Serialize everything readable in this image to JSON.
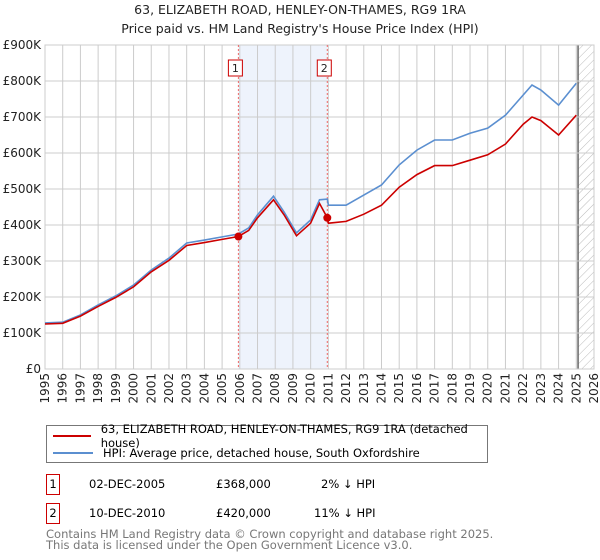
{
  "chart_data": {
    "type": "line",
    "title": "63, ELIZABETH ROAD, HENLEY-ON-THAMES, RG9 1RA",
    "subtitle": "Price paid vs. HM Land Registry's House Price Index (HPI)",
    "xlim": [
      1995,
      2026
    ],
    "ylim": [
      0,
      900000
    ],
    "x_ticks": [
      "1995",
      "1996",
      "1997",
      "1998",
      "1999",
      "2000",
      "2001",
      "2002",
      "2003",
      "2004",
      "2005",
      "2006",
      "2007",
      "2008",
      "2009",
      "2010",
      "2011",
      "2012",
      "2013",
      "2014",
      "2015",
      "2016",
      "2017",
      "2018",
      "2019",
      "2020",
      "2021",
      "2022",
      "2023",
      "2024",
      "2025",
      "2026"
    ],
    "y_ticks": [
      {
        "v": 0,
        "label": "£0"
      },
      {
        "v": 100000,
        "label": "£100K"
      },
      {
        "v": 200000,
        "label": "£200K"
      },
      {
        "v": 300000,
        "label": "£300K"
      },
      {
        "v": 400000,
        "label": "£400K"
      },
      {
        "v": 500000,
        "label": "£500K"
      },
      {
        "v": 600000,
        "label": "£600K"
      },
      {
        "v": 700000,
        "label": "£700K"
      },
      {
        "v": 800000,
        "label": "£800K"
      },
      {
        "v": 900000,
        "label": "£900K"
      }
    ],
    "grid": true,
    "shaded_period": [
      2005.92,
      2010.94
    ],
    "forecast_hatch_from": 2025.1,
    "series": [
      {
        "name": "63, ELIZABETH ROAD, HENLEY-ON-THAMES, RG9 1RA (detached house)",
        "color": "#cc0000",
        "x": [
          1995,
          1996,
          1997,
          1998,
          1999,
          2000,
          2001,
          2002,
          2003,
          2004,
          2005,
          2005.92,
          2006.5,
          2007,
          2007.9,
          2008.5,
          2009.2,
          2010,
          2010.5,
          2010.94,
          2011,
          2012,
          2013,
          2014,
          2015,
          2016,
          2017,
          2018,
          2019,
          2020,
          2021,
          2022,
          2022.5,
          2023,
          2024,
          2025
        ],
        "y": [
          125000,
          127000,
          147000,
          174000,
          199000,
          228000,
          270000,
          302000,
          343000,
          351000,
          360000,
          368000,
          385000,
          420000,
          470000,
          428000,
          370000,
          405000,
          460000,
          420000,
          405000,
          410000,
          430000,
          455000,
          505000,
          540000,
          565000,
          565000,
          580000,
          595000,
          625000,
          680000,
          700000,
          690000,
          650000,
          705000
        ]
      },
      {
        "name": "HPI: Average price, detached house, South Oxfordshire",
        "color": "#5b8fd0",
        "x": [
          1995,
          1996,
          1997,
          1998,
          1999,
          2000,
          2001,
          2002,
          2003,
          2004,
          2005,
          2005.92,
          2006.5,
          2007,
          2007.9,
          2008.5,
          2009.2,
          2010,
          2010.5,
          2010.94,
          2011,
          2012,
          2013,
          2014,
          2015,
          2016,
          2017,
          2018,
          2019,
          2020,
          2021,
          2022,
          2022.5,
          2023,
          2024,
          2025
        ],
        "y": [
          128000,
          130000,
          150000,
          178000,
          203000,
          233000,
          275000,
          308000,
          350000,
          358000,
          367000,
          375000,
          392000,
          428000,
          480000,
          436000,
          378000,
          414000,
          470000,
          472000,
          455000,
          455000,
          483000,
          511000,
          567000,
          608000,
          636000,
          636000,
          655000,
          669000,
          705000,
          761000,
          789000,
          775000,
          733000,
          794000
        ]
      }
    ],
    "sales": [
      {
        "n": "1",
        "x": 2005.92,
        "y": 368000
      },
      {
        "n": "2",
        "x": 2010.94,
        "y": 420000
      }
    ]
  },
  "legend": {
    "property": "63, ELIZABETH ROAD, HENLEY-ON-THAMES, RG9 1RA (detached house)",
    "hpi": "HPI: Average price, detached house, South Oxfordshire"
  },
  "transactions": [
    {
      "n": "1",
      "date": "02-DEC-2005",
      "price": "£368,000",
      "hpi": "2% ↓ HPI"
    },
    {
      "n": "2",
      "date": "10-DEC-2010",
      "price": "£420,000",
      "hpi": "11% ↓ HPI"
    }
  ],
  "footer": {
    "line1": "Contains HM Land Registry data © Crown copyright and database right 2025.",
    "line2": "This data is licensed under the Open Government Licence v3.0."
  }
}
